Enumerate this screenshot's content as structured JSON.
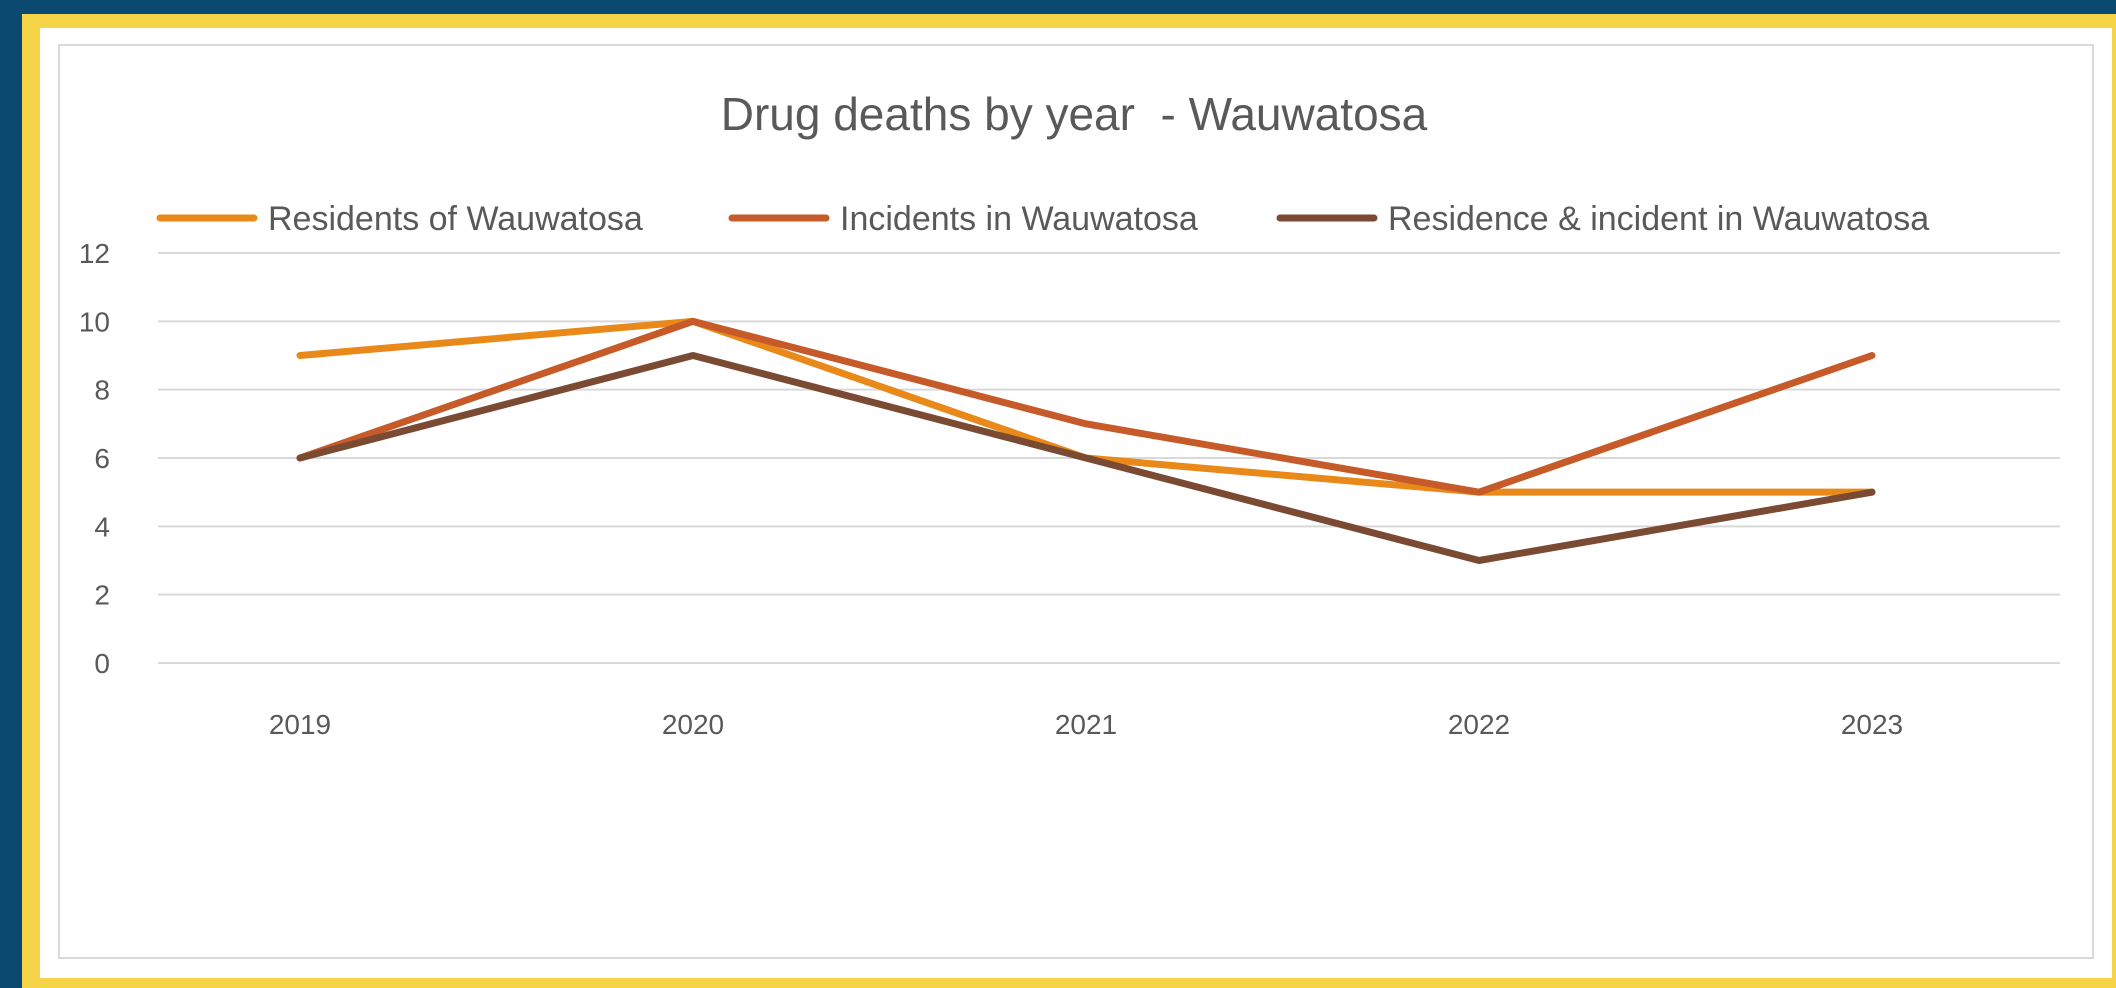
{
  "chart_data": {
    "type": "line",
    "title": "Drug deaths by year  - Wauwatosa",
    "xlabel": "",
    "ylabel": "",
    "categories": [
      "2019",
      "2020",
      "2021",
      "2022",
      "2023"
    ],
    "ylim": [
      0,
      12
    ],
    "yticks": [
      "0",
      "2",
      "4",
      "6",
      "8",
      "10",
      "12"
    ],
    "grid": true,
    "legend_position": "top",
    "series": [
      {
        "name": "Residents of Wauwatosa",
        "color": "#e8891a",
        "values": [
          9,
          10,
          6,
          5,
          5
        ]
      },
      {
        "name": "Incidents in Wauwatosa",
        "color": "#c65a28",
        "values": [
          6,
          10,
          7,
          5,
          9
        ]
      },
      {
        "name": "Residence & incident in Wauwatosa",
        "color": "#7a4a33",
        "values": [
          6,
          9,
          6,
          3,
          5
        ]
      }
    ]
  },
  "colors": {
    "frame": "#0a4a70",
    "border": "#f5d547",
    "gridline": "#d9d9d9",
    "axis_text": "#595959",
    "title_text": "#595959"
  }
}
